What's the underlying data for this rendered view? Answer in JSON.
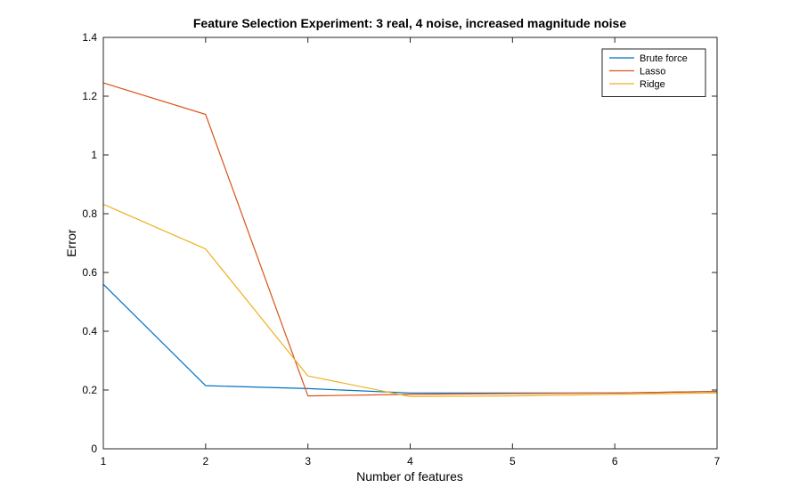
{
  "chart_data": {
    "type": "line",
    "title": "Feature Selection Experiment: 3 real, 4 noise, increased magnitude noise",
    "xlabel": "Number of features",
    "ylabel": "Error",
    "xlim": [
      1,
      7
    ],
    "ylim": [
      0,
      1.4
    ],
    "xticks": [
      1,
      2,
      3,
      4,
      5,
      6,
      7
    ],
    "yticks": [
      0,
      0.2,
      0.4,
      0.6,
      0.8,
      1,
      1.2,
      1.4
    ],
    "x_tick_labels": [
      "1",
      "2",
      "3",
      "4",
      "5",
      "6",
      "7"
    ],
    "y_tick_labels": [
      "0",
      "0.2",
      "0.4",
      "0.6",
      "0.8",
      "1",
      "1.2",
      "1.4"
    ],
    "grid": false,
    "legend_position": "top-right",
    "series": [
      {
        "name": "Brute force",
        "color": "#0072BD",
        "x": [
          1,
          2,
          3,
          4,
          5,
          6,
          7
        ],
        "y": [
          0.56,
          0.215,
          0.205,
          0.19,
          0.19,
          0.19,
          0.195
        ]
      },
      {
        "name": "Lasso",
        "color": "#D95319",
        "x": [
          1,
          2,
          3,
          4,
          5,
          6,
          7
        ],
        "y": [
          1.245,
          1.138,
          0.18,
          0.185,
          0.188,
          0.19,
          0.195
        ]
      },
      {
        "name": "Ridge",
        "color": "#EDB120",
        "x": [
          1,
          2,
          3,
          4,
          5,
          6,
          7
        ],
        "y": [
          0.832,
          0.68,
          0.248,
          0.178,
          0.18,
          0.185,
          0.19
        ]
      }
    ]
  }
}
